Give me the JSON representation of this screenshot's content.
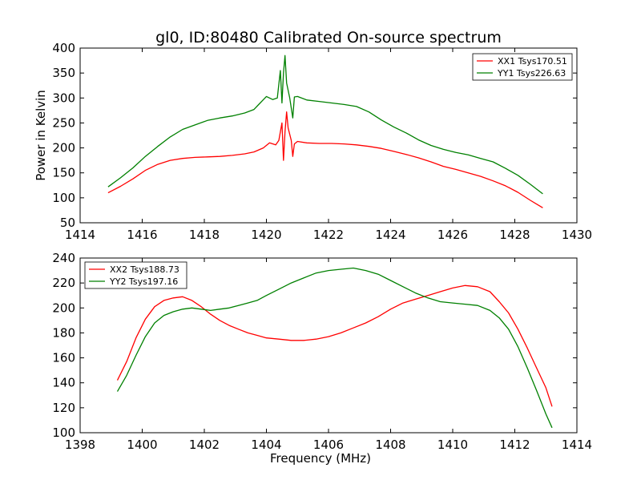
{
  "chart_data": [
    {
      "type": "line",
      "title": "gl0, ID:80480 Calibrated On-source spectrum",
      "xlabel": "",
      "ylabel": "Power in Kelvin",
      "xlim": [
        1414,
        1430
      ],
      "ylim": [
        50,
        400
      ],
      "xticks": [
        1414,
        1416,
        1418,
        1420,
        1422,
        1424,
        1426,
        1428,
        1430
      ],
      "yticks": [
        50,
        100,
        150,
        200,
        250,
        300,
        350,
        400
      ],
      "legend": "top-right",
      "grid": false,
      "series": [
        {
          "name": "XX1 Tsys170.51",
          "color": "#ff0000",
          "points": [
            [
              1414.9,
              110
            ],
            [
              1415.3,
              123
            ],
            [
              1415.7,
              138
            ],
            [
              1416.1,
              155
            ],
            [
              1416.5,
              167
            ],
            [
              1416.9,
              175
            ],
            [
              1417.3,
              179
            ],
            [
              1417.7,
              181
            ],
            [
              1418.1,
              182
            ],
            [
              1418.5,
              183
            ],
            [
              1418.9,
              185
            ],
            [
              1419.3,
              188
            ],
            [
              1419.6,
              192
            ],
            [
              1419.9,
              200
            ],
            [
              1420.1,
              210
            ],
            [
              1420.3,
              206
            ],
            [
              1420.4,
              215
            ],
            [
              1420.5,
              250
            ],
            [
              1420.55,
              175
            ],
            [
              1420.6,
              232
            ],
            [
              1420.65,
              272
            ],
            [
              1420.7,
              240
            ],
            [
              1420.8,
              215
            ],
            [
              1420.85,
              183
            ],
            [
              1420.9,
              208
            ],
            [
              1421.0,
              213
            ],
            [
              1421.3,
              210
            ],
            [
              1421.7,
              209
            ],
            [
              1422.1,
              209
            ],
            [
              1422.5,
              208
            ],
            [
              1422.9,
              206
            ],
            [
              1423.3,
              203
            ],
            [
              1423.7,
              199
            ],
            [
              1424.1,
              193
            ],
            [
              1424.5,
              187
            ],
            [
              1424.9,
              180
            ],
            [
              1425.3,
              172
            ],
            [
              1425.7,
              163
            ],
            [
              1426.1,
              157
            ],
            [
              1426.5,
              150
            ],
            [
              1426.9,
              143
            ],
            [
              1427.3,
              134
            ],
            [
              1427.7,
              124
            ],
            [
              1428.1,
              111
            ],
            [
              1428.5,
              95
            ],
            [
              1428.9,
              80
            ]
          ]
        },
        {
          "name": "YY1 Tsys226.63",
          "color": "#008000",
          "points": [
            [
              1414.9,
              122
            ],
            [
              1415.3,
              140
            ],
            [
              1415.7,
              160
            ],
            [
              1416.1,
              183
            ],
            [
              1416.5,
              203
            ],
            [
              1416.9,
              222
            ],
            [
              1417.3,
              237
            ],
            [
              1417.7,
              246
            ],
            [
              1418.1,
              255
            ],
            [
              1418.5,
              260
            ],
            [
              1418.9,
              264
            ],
            [
              1419.3,
              270
            ],
            [
              1419.6,
              277
            ],
            [
              1419.8,
              290
            ],
            [
              1420.0,
              303
            ],
            [
              1420.2,
              297
            ],
            [
              1420.35,
              300
            ],
            [
              1420.45,
              355
            ],
            [
              1420.5,
              290
            ],
            [
              1420.55,
              350
            ],
            [
              1420.6,
              385
            ],
            [
              1420.65,
              330
            ],
            [
              1420.75,
              300
            ],
            [
              1420.85,
              260
            ],
            [
              1420.9,
              302
            ],
            [
              1421.0,
              303
            ],
            [
              1421.3,
              296
            ],
            [
              1421.7,
              293
            ],
            [
              1422.1,
              290
            ],
            [
              1422.5,
              287
            ],
            [
              1422.9,
              283
            ],
            [
              1423.3,
              272
            ],
            [
              1423.7,
              256
            ],
            [
              1424.1,
              242
            ],
            [
              1424.5,
              230
            ],
            [
              1424.9,
              216
            ],
            [
              1425.3,
              205
            ],
            [
              1425.7,
              197
            ],
            [
              1426.1,
              191
            ],
            [
              1426.5,
              186
            ],
            [
              1426.9,
              179
            ],
            [
              1427.3,
              172
            ],
            [
              1427.7,
              159
            ],
            [
              1428.1,
              145
            ],
            [
              1428.5,
              127
            ],
            [
              1428.9,
              108
            ]
          ]
        }
      ]
    },
    {
      "type": "line",
      "title": "",
      "xlabel": "Frequency (MHz)",
      "ylabel": "",
      "xlim": [
        1398,
        1414
      ],
      "ylim": [
        100,
        240
      ],
      "xticks": [
        1398,
        1400,
        1402,
        1404,
        1406,
        1408,
        1410,
        1412,
        1414
      ],
      "yticks": [
        100,
        120,
        140,
        160,
        180,
        200,
        220,
        240
      ],
      "legend": "top-left",
      "grid": false,
      "series": [
        {
          "name": "XX2 Tsys188.73",
          "color": "#ff0000",
          "points": [
            [
              1399.2,
              142
            ],
            [
              1399.5,
              157
            ],
            [
              1399.8,
              176
            ],
            [
              1400.1,
              191
            ],
            [
              1400.4,
              201
            ],
            [
              1400.7,
              206
            ],
            [
              1401.0,
              208
            ],
            [
              1401.3,
              209
            ],
            [
              1401.6,
              206
            ],
            [
              1401.9,
              201
            ],
            [
              1402.2,
              195
            ],
            [
              1402.5,
              190
            ],
            [
              1402.8,
              186
            ],
            [
              1403.1,
              183
            ],
            [
              1403.4,
              180
            ],
            [
              1403.7,
              178
            ],
            [
              1404.0,
              176
            ],
            [
              1404.4,
              175
            ],
            [
              1404.8,
              174
            ],
            [
              1405.2,
              174
            ],
            [
              1405.6,
              175
            ],
            [
              1406.0,
              177
            ],
            [
              1406.4,
              180
            ],
            [
              1406.8,
              184
            ],
            [
              1407.2,
              188
            ],
            [
              1407.6,
              193
            ],
            [
              1408.0,
              199
            ],
            [
              1408.4,
              204
            ],
            [
              1408.8,
              207
            ],
            [
              1409.2,
              210
            ],
            [
              1409.6,
              213
            ],
            [
              1410.0,
              216
            ],
            [
              1410.4,
              218
            ],
            [
              1410.8,
              217
            ],
            [
              1411.2,
              213
            ],
            [
              1411.5,
              205
            ],
            [
              1411.8,
              196
            ],
            [
              1412.1,
              183
            ],
            [
              1412.4,
              168
            ],
            [
              1412.7,
              152
            ],
            [
              1413.0,
              136
            ],
            [
              1413.2,
              121
            ]
          ]
        },
        {
          "name": "YY2 Tsys197.16",
          "color": "#008000",
          "points": [
            [
              1399.2,
              133
            ],
            [
              1399.5,
              146
            ],
            [
              1399.8,
              162
            ],
            [
              1400.1,
              177
            ],
            [
              1400.4,
              188
            ],
            [
              1400.7,
              194
            ],
            [
              1401.0,
              197
            ],
            [
              1401.3,
              199
            ],
            [
              1401.6,
              200
            ],
            [
              1401.9,
              199
            ],
            [
              1402.2,
              198
            ],
            [
              1402.5,
              199
            ],
            [
              1402.8,
              200
            ],
            [
              1403.1,
              202
            ],
            [
              1403.4,
              204
            ],
            [
              1403.7,
              206
            ],
            [
              1404.0,
              210
            ],
            [
              1404.4,
              215
            ],
            [
              1404.8,
              220
            ],
            [
              1405.2,
              224
            ],
            [
              1405.6,
              228
            ],
            [
              1406.0,
              230
            ],
            [
              1406.4,
              231
            ],
            [
              1406.8,
              232
            ],
            [
              1407.2,
              230
            ],
            [
              1407.6,
              227
            ],
            [
              1408.0,
              222
            ],
            [
              1408.4,
              217
            ],
            [
              1408.8,
              212
            ],
            [
              1409.2,
              208
            ],
            [
              1409.6,
              205
            ],
            [
              1410.0,
              204
            ],
            [
              1410.4,
              203
            ],
            [
              1410.8,
              202
            ],
            [
              1411.2,
              198
            ],
            [
              1411.5,
              192
            ],
            [
              1411.8,
              183
            ],
            [
              1412.1,
              169
            ],
            [
              1412.4,
              152
            ],
            [
              1412.7,
              134
            ],
            [
              1413.0,
              115
            ],
            [
              1413.2,
              104
            ]
          ]
        }
      ]
    }
  ]
}
